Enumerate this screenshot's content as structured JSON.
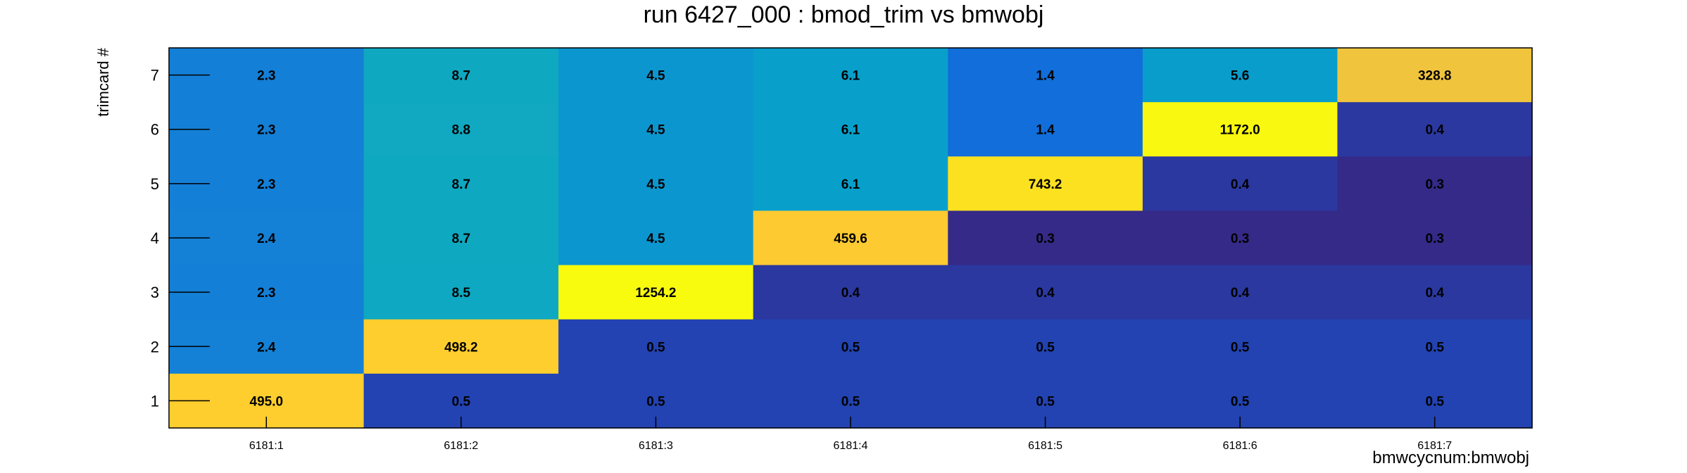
{
  "chart_data": {
    "type": "heatmap",
    "title": "run 6427_000 : bmod_trim vs bmwobj",
    "xlabel": "bmwcycnum:bmwobj",
    "ylabel": "trimcard #",
    "x_categories": [
      "6181:1",
      "6181:2",
      "6181:3",
      "6181:4",
      "6181:5",
      "6181:6",
      "6181:7"
    ],
    "y_categories": [
      "1",
      "2",
      "3",
      "4",
      "5",
      "6",
      "7"
    ],
    "rows": [
      {
        "y": "7",
        "values": [
          2.3,
          8.7,
          4.5,
          6.1,
          1.4,
          5.6,
          328.8
        ],
        "labels": [
          "2.3",
          "8.7",
          "4.5",
          "6.1",
          "1.4",
          "5.6",
          "328.8"
        ]
      },
      {
        "y": "6",
        "values": [
          2.3,
          8.8,
          4.5,
          6.1,
          1.4,
          1172.0,
          0.4
        ],
        "labels": [
          "2.3",
          "8.8",
          "4.5",
          "6.1",
          "1.4",
          "1172.0",
          "0.4"
        ]
      },
      {
        "y": "5",
        "values": [
          2.3,
          8.7,
          4.5,
          6.1,
          743.2,
          0.4,
          0.3
        ],
        "labels": [
          "2.3",
          "8.7",
          "4.5",
          "6.1",
          "743.2",
          "0.4",
          "0.3"
        ]
      },
      {
        "y": "4",
        "values": [
          2.4,
          8.7,
          4.5,
          459.6,
          0.3,
          0.3,
          0.3
        ],
        "labels": [
          "2.4",
          "8.7",
          "4.5",
          "459.6",
          "0.3",
          "0.3",
          "0.3"
        ]
      },
      {
        "y": "3",
        "values": [
          2.3,
          8.5,
          1254.2,
          0.4,
          0.4,
          0.4,
          0.4
        ],
        "labels": [
          "2.3",
          "8.5",
          "1254.2",
          "0.4",
          "0.4",
          "0.4",
          "0.4"
        ]
      },
      {
        "y": "2",
        "values": [
          2.4,
          498.2,
          0.5,
          0.5,
          0.5,
          0.5,
          0.5
        ],
        "labels": [
          "2.4",
          "498.2",
          "0.5",
          "0.5",
          "0.5",
          "0.5",
          "0.5"
        ]
      },
      {
        "y": "1",
        "values": [
          495.0,
          0.5,
          0.5,
          0.5,
          0.5,
          0.5,
          0.5
        ],
        "labels": [
          "495.0",
          "0.5",
          "0.5",
          "0.5",
          "0.5",
          "0.5",
          "0.5"
        ]
      }
    ],
    "color_scale": "log",
    "colormap": [
      "#352a87",
      "#0f5cdd",
      "#1481d6",
      "#06a4ca",
      "#2eb7a4",
      "#87bf77",
      "#d1bb59",
      "#fec832",
      "#f9fb0e"
    ],
    "grid": false,
    "legend": "none"
  }
}
